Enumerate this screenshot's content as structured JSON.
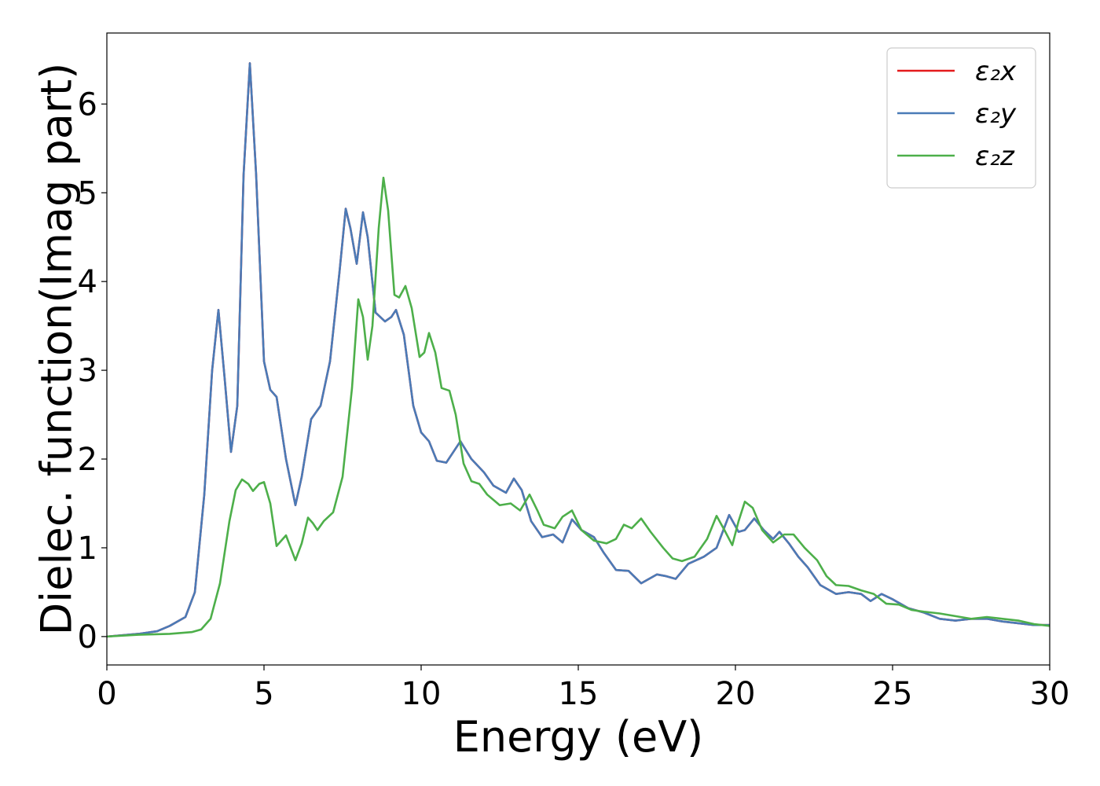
{
  "chart_data": {
    "type": "line",
    "title": "",
    "xlabel": "Energy (eV)",
    "ylabel": "Dielec. function(Imag part)",
    "xlim": [
      0,
      30
    ],
    "ylim": [
      -0.32,
      6.8
    ],
    "xticks": [
      0,
      5,
      10,
      15,
      20,
      25,
      30
    ],
    "yticks": [
      0,
      1,
      2,
      3,
      4,
      5,
      6
    ],
    "grid": false,
    "legend_position": "top-right",
    "series": [
      {
        "name": "ε₂x",
        "color": "#e41a1c",
        "points": [
          [
            0,
            0.0
          ],
          [
            1,
            0.03
          ],
          [
            1.6,
            0.06
          ],
          [
            2,
            0.12
          ],
          [
            2.5,
            0.22
          ],
          [
            2.8,
            0.5
          ],
          [
            3.1,
            1.6
          ],
          [
            3.35,
            3.0
          ],
          [
            3.55,
            3.68
          ],
          [
            3.75,
            2.9
          ],
          [
            3.95,
            2.08
          ],
          [
            4.15,
            2.6
          ],
          [
            4.35,
            5.2
          ],
          [
            4.55,
            6.46
          ],
          [
            4.75,
            5.2
          ],
          [
            5.0,
            3.1
          ],
          [
            5.2,
            2.78
          ],
          [
            5.4,
            2.7
          ],
          [
            5.7,
            2.0
          ],
          [
            6.0,
            1.48
          ],
          [
            6.2,
            1.8
          ],
          [
            6.5,
            2.45
          ],
          [
            6.8,
            2.6
          ],
          [
            7.1,
            3.1
          ],
          [
            7.4,
            4.1
          ],
          [
            7.6,
            4.82
          ],
          [
            7.75,
            4.6
          ],
          [
            7.95,
            4.2
          ],
          [
            8.15,
            4.78
          ],
          [
            8.3,
            4.5
          ],
          [
            8.55,
            3.65
          ],
          [
            8.85,
            3.55
          ],
          [
            9.05,
            3.6
          ],
          [
            9.2,
            3.68
          ],
          [
            9.45,
            3.4
          ],
          [
            9.75,
            2.6
          ],
          [
            10.0,
            2.3
          ],
          [
            10.25,
            2.2
          ],
          [
            10.5,
            1.98
          ],
          [
            10.8,
            1.96
          ],
          [
            11.25,
            2.2
          ],
          [
            11.6,
            2.0
          ],
          [
            12.0,
            1.85
          ],
          [
            12.3,
            1.7
          ],
          [
            12.7,
            1.62
          ],
          [
            12.95,
            1.78
          ],
          [
            13.2,
            1.65
          ],
          [
            13.5,
            1.3
          ],
          [
            13.85,
            1.12
          ],
          [
            14.2,
            1.15
          ],
          [
            14.5,
            1.06
          ],
          [
            14.8,
            1.32
          ],
          [
            15.1,
            1.2
          ],
          [
            15.5,
            1.12
          ],
          [
            15.8,
            0.95
          ],
          [
            16.2,
            0.75
          ],
          [
            16.6,
            0.74
          ],
          [
            17.0,
            0.6
          ],
          [
            17.5,
            0.7
          ],
          [
            17.8,
            0.68
          ],
          [
            18.1,
            0.65
          ],
          [
            18.5,
            0.82
          ],
          [
            19.0,
            0.9
          ],
          [
            19.4,
            1.0
          ],
          [
            19.8,
            1.37
          ],
          [
            20.1,
            1.18
          ],
          [
            20.3,
            1.2
          ],
          [
            20.6,
            1.33
          ],
          [
            20.9,
            1.2
          ],
          [
            21.2,
            1.1
          ],
          [
            21.4,
            1.18
          ],
          [
            21.7,
            1.05
          ],
          [
            22.0,
            0.9
          ],
          [
            22.3,
            0.78
          ],
          [
            22.7,
            0.58
          ],
          [
            23.2,
            0.48
          ],
          [
            23.6,
            0.5
          ],
          [
            24.0,
            0.48
          ],
          [
            24.3,
            0.4
          ],
          [
            24.65,
            0.48
          ],
          [
            25.0,
            0.42
          ],
          [
            25.5,
            0.32
          ],
          [
            26.0,
            0.27
          ],
          [
            26.5,
            0.2
          ],
          [
            27.0,
            0.18
          ],
          [
            27.5,
            0.2
          ],
          [
            28.0,
            0.2
          ],
          [
            28.5,
            0.17
          ],
          [
            29.0,
            0.15
          ],
          [
            29.5,
            0.13
          ],
          [
            30.0,
            0.13
          ]
        ]
      },
      {
        "name": "ε₂y",
        "color": "#4a7bb7",
        "points": [
          [
            0,
            0.0
          ],
          [
            1,
            0.03
          ],
          [
            1.6,
            0.06
          ],
          [
            2,
            0.12
          ],
          [
            2.5,
            0.22
          ],
          [
            2.8,
            0.5
          ],
          [
            3.1,
            1.6
          ],
          [
            3.35,
            3.0
          ],
          [
            3.55,
            3.68
          ],
          [
            3.75,
            2.9
          ],
          [
            3.95,
            2.08
          ],
          [
            4.15,
            2.6
          ],
          [
            4.35,
            5.2
          ],
          [
            4.55,
            6.46
          ],
          [
            4.75,
            5.2
          ],
          [
            5.0,
            3.1
          ],
          [
            5.2,
            2.78
          ],
          [
            5.4,
            2.7
          ],
          [
            5.7,
            2.0
          ],
          [
            6.0,
            1.48
          ],
          [
            6.2,
            1.8
          ],
          [
            6.5,
            2.45
          ],
          [
            6.8,
            2.6
          ],
          [
            7.1,
            3.1
          ],
          [
            7.4,
            4.1
          ],
          [
            7.6,
            4.82
          ],
          [
            7.75,
            4.6
          ],
          [
            7.95,
            4.2
          ],
          [
            8.15,
            4.78
          ],
          [
            8.3,
            4.5
          ],
          [
            8.55,
            3.65
          ],
          [
            8.85,
            3.55
          ],
          [
            9.05,
            3.6
          ],
          [
            9.2,
            3.68
          ],
          [
            9.45,
            3.4
          ],
          [
            9.75,
            2.6
          ],
          [
            10.0,
            2.3
          ],
          [
            10.25,
            2.2
          ],
          [
            10.5,
            1.98
          ],
          [
            10.8,
            1.96
          ],
          [
            11.25,
            2.2
          ],
          [
            11.6,
            2.0
          ],
          [
            12.0,
            1.85
          ],
          [
            12.3,
            1.7
          ],
          [
            12.7,
            1.62
          ],
          [
            12.95,
            1.78
          ],
          [
            13.2,
            1.65
          ],
          [
            13.5,
            1.3
          ],
          [
            13.85,
            1.12
          ],
          [
            14.2,
            1.15
          ],
          [
            14.5,
            1.06
          ],
          [
            14.8,
            1.32
          ],
          [
            15.1,
            1.2
          ],
          [
            15.5,
            1.12
          ],
          [
            15.8,
            0.95
          ],
          [
            16.2,
            0.75
          ],
          [
            16.6,
            0.74
          ],
          [
            17.0,
            0.6
          ],
          [
            17.5,
            0.7
          ],
          [
            17.8,
            0.68
          ],
          [
            18.1,
            0.65
          ],
          [
            18.5,
            0.82
          ],
          [
            19.0,
            0.9
          ],
          [
            19.4,
            1.0
          ],
          [
            19.8,
            1.37
          ],
          [
            20.1,
            1.18
          ],
          [
            20.3,
            1.2
          ],
          [
            20.6,
            1.33
          ],
          [
            20.9,
            1.2
          ],
          [
            21.2,
            1.1
          ],
          [
            21.4,
            1.18
          ],
          [
            21.7,
            1.05
          ],
          [
            22.0,
            0.9
          ],
          [
            22.3,
            0.78
          ],
          [
            22.7,
            0.58
          ],
          [
            23.2,
            0.48
          ],
          [
            23.6,
            0.5
          ],
          [
            24.0,
            0.48
          ],
          [
            24.3,
            0.4
          ],
          [
            24.65,
            0.48
          ],
          [
            25.0,
            0.42
          ],
          [
            25.5,
            0.32
          ],
          [
            26.0,
            0.27
          ],
          [
            26.5,
            0.2
          ],
          [
            27.0,
            0.18
          ],
          [
            27.5,
            0.2
          ],
          [
            28.0,
            0.2
          ],
          [
            28.5,
            0.17
          ],
          [
            29.0,
            0.15
          ],
          [
            29.5,
            0.13
          ],
          [
            30.0,
            0.13
          ]
        ]
      },
      {
        "name": "ε₂z",
        "color": "#4daf4a",
        "points": [
          [
            0,
            0.0
          ],
          [
            1,
            0.02
          ],
          [
            2,
            0.03
          ],
          [
            2.7,
            0.05
          ],
          [
            3.0,
            0.08
          ],
          [
            3.3,
            0.2
          ],
          [
            3.6,
            0.6
          ],
          [
            3.9,
            1.3
          ],
          [
            4.1,
            1.65
          ],
          [
            4.3,
            1.77
          ],
          [
            4.5,
            1.72
          ],
          [
            4.65,
            1.64
          ],
          [
            4.85,
            1.72
          ],
          [
            5.0,
            1.74
          ],
          [
            5.2,
            1.5
          ],
          [
            5.4,
            1.02
          ],
          [
            5.55,
            1.08
          ],
          [
            5.7,
            1.14
          ],
          [
            5.85,
            1.0
          ],
          [
            6.0,
            0.86
          ],
          [
            6.2,
            1.05
          ],
          [
            6.4,
            1.34
          ],
          [
            6.55,
            1.28
          ],
          [
            6.7,
            1.2
          ],
          [
            6.9,
            1.3
          ],
          [
            7.2,
            1.4
          ],
          [
            7.5,
            1.8
          ],
          [
            7.8,
            2.8
          ],
          [
            8.0,
            3.8
          ],
          [
            8.15,
            3.6
          ],
          [
            8.3,
            3.12
          ],
          [
            8.45,
            3.5
          ],
          [
            8.65,
            4.6
          ],
          [
            8.8,
            5.17
          ],
          [
            8.95,
            4.8
          ],
          [
            9.15,
            3.85
          ],
          [
            9.3,
            3.82
          ],
          [
            9.5,
            3.95
          ],
          [
            9.7,
            3.7
          ],
          [
            9.95,
            3.15
          ],
          [
            10.1,
            3.2
          ],
          [
            10.25,
            3.42
          ],
          [
            10.45,
            3.2
          ],
          [
            10.65,
            2.8
          ],
          [
            10.9,
            2.77
          ],
          [
            11.1,
            2.5
          ],
          [
            11.35,
            1.95
          ],
          [
            11.6,
            1.75
          ],
          [
            11.85,
            1.72
          ],
          [
            12.1,
            1.6
          ],
          [
            12.5,
            1.48
          ],
          [
            12.85,
            1.5
          ],
          [
            13.15,
            1.42
          ],
          [
            13.45,
            1.6
          ],
          [
            13.7,
            1.42
          ],
          [
            13.9,
            1.26
          ],
          [
            14.25,
            1.22
          ],
          [
            14.5,
            1.35
          ],
          [
            14.8,
            1.42
          ],
          [
            15.1,
            1.2
          ],
          [
            15.5,
            1.08
          ],
          [
            15.9,
            1.05
          ],
          [
            16.2,
            1.1
          ],
          [
            16.45,
            1.26
          ],
          [
            16.7,
            1.22
          ],
          [
            17.0,
            1.33
          ],
          [
            17.3,
            1.18
          ],
          [
            17.7,
            1.0
          ],
          [
            18.0,
            0.88
          ],
          [
            18.3,
            0.85
          ],
          [
            18.7,
            0.9
          ],
          [
            19.1,
            1.1
          ],
          [
            19.4,
            1.36
          ],
          [
            19.65,
            1.2
          ],
          [
            19.9,
            1.03
          ],
          [
            20.1,
            1.3
          ],
          [
            20.3,
            1.52
          ],
          [
            20.55,
            1.45
          ],
          [
            20.85,
            1.2
          ],
          [
            21.2,
            1.06
          ],
          [
            21.55,
            1.15
          ],
          [
            21.85,
            1.15
          ],
          [
            22.2,
            1.0
          ],
          [
            22.6,
            0.86
          ],
          [
            22.9,
            0.68
          ],
          [
            23.2,
            0.58
          ],
          [
            23.6,
            0.57
          ],
          [
            24.0,
            0.52
          ],
          [
            24.4,
            0.48
          ],
          [
            24.8,
            0.37
          ],
          [
            25.2,
            0.36
          ],
          [
            25.6,
            0.3
          ],
          [
            26.0,
            0.28
          ],
          [
            26.5,
            0.26
          ],
          [
            27.0,
            0.23
          ],
          [
            27.5,
            0.2
          ],
          [
            28.0,
            0.22
          ],
          [
            28.5,
            0.2
          ],
          [
            29.0,
            0.18
          ],
          [
            29.5,
            0.14
          ],
          [
            30.0,
            0.12
          ]
        ]
      }
    ]
  }
}
